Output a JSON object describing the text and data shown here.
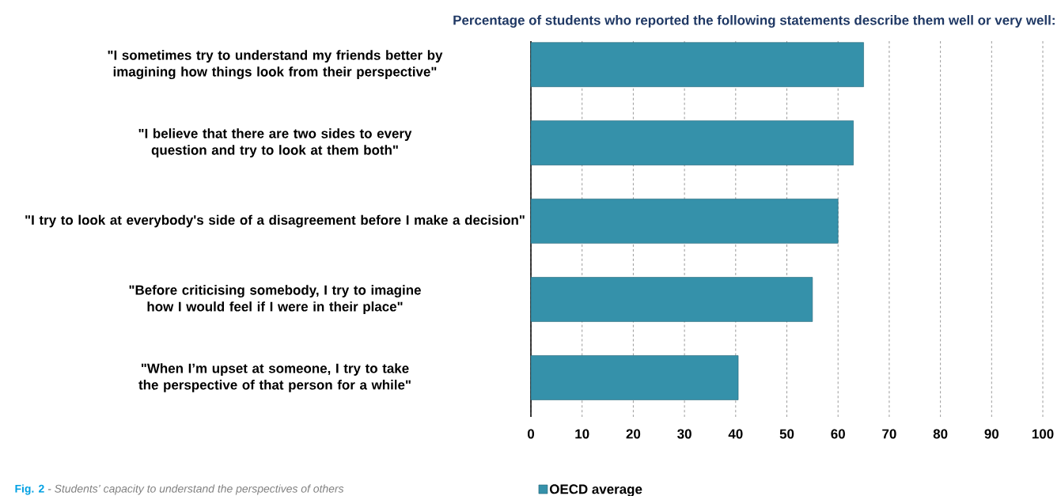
{
  "chart_data": {
    "type": "bar",
    "orientation": "horizontal",
    "title": "Percentage of students who reported the following statements describe them well or very well:",
    "categories": [
      "\"I sometimes try to understand my friends better by imagining how things look from their perspective\"",
      "\"I believe that there are two sides to every question and try to look at them both\"",
      "\"I try to look at everybody's side of a disagreement before I make a decision\"",
      "\"Before criticising somebody, I try to imagine how I would feel if I were in their place\"",
      "\"When I’m upset at someone, I try to take the perspective of that person for a while\""
    ],
    "series": [
      {
        "name": "OECD average",
        "color": "#3591aa",
        "values": [
          65,
          63,
          60,
          55,
          40.5
        ]
      }
    ],
    "xlim": [
      0,
      100
    ],
    "xticks": [
      0,
      10,
      20,
      30,
      40,
      50,
      60,
      70,
      80,
      90,
      100
    ],
    "grid": "x",
    "legend": "bottom",
    "annotations": [
      "Fig. 2",
      "- Students’ capacity to understand the perspectives of others"
    ]
  }
}
